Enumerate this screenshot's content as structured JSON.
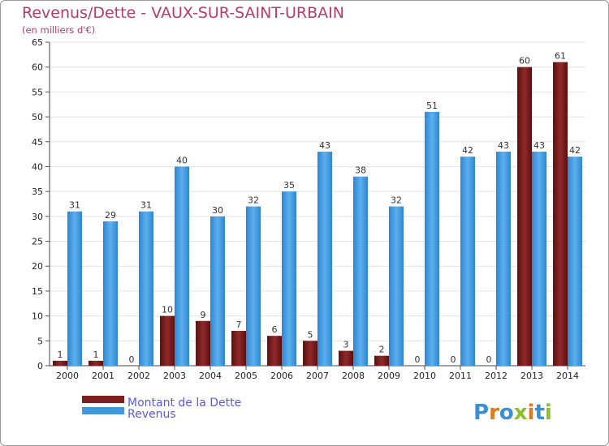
{
  "chart_data": {
    "type": "bar",
    "title": "Revenus/Dette - VAUX-SUR-SAINT-URBAIN",
    "subtitle": "(en milliers d'€)",
    "categories": [
      "2000",
      "2001",
      "2002",
      "2003",
      "2004",
      "2005",
      "2006",
      "2007",
      "2008",
      "2009",
      "2010",
      "2011",
      "2012",
      "2013",
      "2014"
    ],
    "series": [
      {
        "name": "Montant de la Dette",
        "color": "#7a1e1e",
        "values": [
          1,
          1,
          0,
          10,
          9,
          7,
          6,
          5,
          3,
          2,
          0,
          0,
          0,
          60,
          61
        ]
      },
      {
        "name": "Revenus",
        "color": "#3f97dc",
        "values": [
          31,
          29,
          31,
          40,
          30,
          32,
          35,
          43,
          38,
          32,
          51,
          42,
          43,
          43,
          42
        ]
      }
    ],
    "ylim": [
      0,
      65
    ],
    "yticks": [
      0,
      5,
      10,
      15,
      20,
      25,
      30,
      35,
      40,
      45,
      50,
      55,
      60,
      65
    ],
    "grid": true,
    "legend": "bottom-left"
  },
  "branding": {
    "logo_text": "Proxiti",
    "letter_colors": [
      "#3a8fd6",
      "#e07a1f",
      "#3a8fd6",
      "#8bbf2a",
      "#e07a1f",
      "#3a8fd6",
      "#8bbf2a"
    ]
  }
}
